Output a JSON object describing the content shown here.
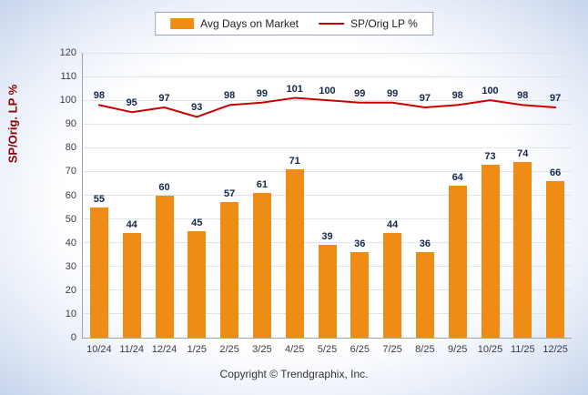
{
  "legend": {
    "items": [
      {
        "label": "Avg Days on Market",
        "type": "bar",
        "color": "#EE8C15"
      },
      {
        "label": "SP/Orig LP %",
        "type": "line",
        "color": "#CC0000"
      }
    ]
  },
  "ylabel": "SP/Orig. LP %",
  "ylabel_color": "#8B0000",
  "footer": "Copyright © Trendgraphix, Inc.",
  "chart_data": {
    "type": "bar+line",
    "title": "",
    "xlabel": "",
    "ylabel": "SP/Orig. LP %",
    "categories": [
      "10/24",
      "11/24",
      "12/24",
      "1/25",
      "2/25",
      "3/25",
      "4/25",
      "5/25",
      "6/25",
      "7/25",
      "8/25",
      "9/25",
      "10/25",
      "11/25",
      "12/25"
    ],
    "series": [
      {
        "name": "Avg Days on Market",
        "type": "bar",
        "color": "#EE8C15",
        "values": [
          55,
          44,
          60,
          45,
          57,
          61,
          71,
          39,
          36,
          44,
          36,
          64,
          73,
          74,
          66
        ]
      },
      {
        "name": "SP/Orig LP %",
        "type": "line",
        "color": "#CC0000",
        "values": [
          98,
          95,
          97,
          93,
          98,
          99,
          101,
          100,
          99,
          99,
          97,
          98,
          100,
          98,
          97
        ]
      }
    ],
    "ylim": [
      0,
      120
    ],
    "ytick_step": 10,
    "grid": true,
    "legend_position": "top"
  }
}
